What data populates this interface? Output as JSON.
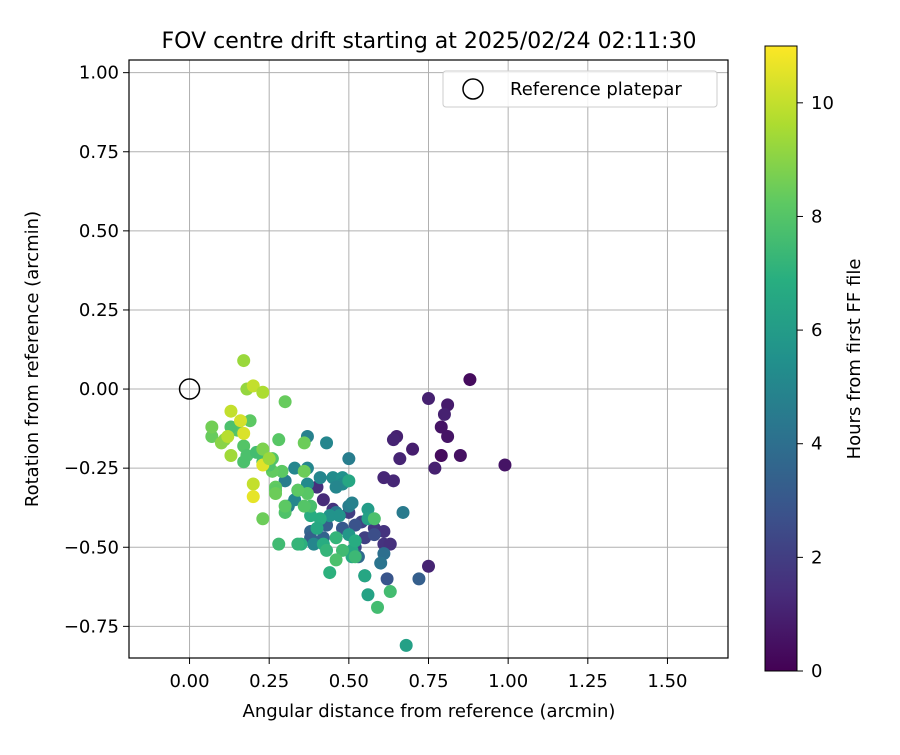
{
  "chart_data": {
    "type": "scatter",
    "title": "FOV centre drift starting at 2025/02/24 02:11:30",
    "xlabel": "Angular distance from reference (arcmin)",
    "ylabel": "Rotation from reference (arcmin)",
    "xlim": [
      -0.19,
      1.69
    ],
    "ylim": [
      -0.85,
      1.04
    ],
    "x_ticks": [
      "0.00",
      "0.25",
      "0.50",
      "0.75",
      "1.00",
      "1.25",
      "1.50"
    ],
    "x_tick_values": [
      0,
      0.25,
      0.5,
      0.75,
      1.0,
      1.25,
      1.5
    ],
    "y_ticks": [
      "1.00",
      "0.75",
      "0.50",
      "0.25",
      "0.00",
      "−0.25",
      "−0.50",
      "−0.75"
    ],
    "y_tick_values": [
      1.0,
      0.75,
      0.5,
      0.25,
      0.0,
      -0.25,
      -0.5,
      -0.75
    ],
    "grid": true,
    "legend": {
      "position": "top-right",
      "entries": [
        "Reference platepar"
      ]
    },
    "reference_point": {
      "x": 0.0,
      "y": 0.0
    },
    "colorbar": {
      "label": "Hours from first FF file",
      "colormap": "viridis",
      "range": [
        0,
        11
      ],
      "ticks": [
        "0",
        "2",
        "4",
        "6",
        "8",
        "10"
      ],
      "tick_values": [
        0,
        2,
        4,
        6,
        8,
        10
      ]
    },
    "columns": [
      "x",
      "y",
      "hours"
    ],
    "points": [
      [
        0.88,
        0.03,
        0.3
      ],
      [
        0.75,
        -0.03,
        1.0
      ],
      [
        0.81,
        -0.05,
        0.8
      ],
      [
        0.8,
        -0.08,
        1.0
      ],
      [
        0.79,
        -0.12,
        0.6
      ],
      [
        0.81,
        -0.15,
        0.6
      ],
      [
        0.65,
        -0.15,
        1.0
      ],
      [
        0.64,
        -0.16,
        1.1
      ],
      [
        0.7,
        -0.19,
        0.9
      ],
      [
        0.79,
        -0.21,
        0.3
      ],
      [
        0.85,
        -0.21,
        0.5
      ],
      [
        0.66,
        -0.22,
        1.1
      ],
      [
        0.99,
        -0.24,
        0.6
      ],
      [
        0.77,
        -0.25,
        1.0
      ],
      [
        0.61,
        -0.28,
        1.2
      ],
      [
        0.64,
        -0.29,
        1.2
      ],
      [
        0.4,
        -0.31,
        1.5
      ],
      [
        0.42,
        -0.35,
        1.3
      ],
      [
        0.45,
        -0.38,
        1.6
      ],
      [
        0.5,
        -0.39,
        2.0
      ],
      [
        0.54,
        -0.42,
        2.2
      ],
      [
        0.58,
        -0.44,
        1.8
      ],
      [
        0.61,
        -0.45,
        1.6
      ],
      [
        0.55,
        -0.47,
        2.1
      ],
      [
        0.61,
        -0.49,
        1.6
      ],
      [
        0.63,
        -0.49,
        1.5
      ],
      [
        0.52,
        -0.5,
        2.4
      ],
      [
        0.75,
        -0.56,
        1.1
      ],
      [
        0.58,
        -0.46,
        2.6
      ],
      [
        0.48,
        -0.44,
        3.0
      ],
      [
        0.52,
        -0.43,
        2.8
      ],
      [
        0.43,
        -0.43,
        3.3
      ],
      [
        0.38,
        -0.45,
        3.6
      ],
      [
        0.38,
        -0.47,
        3.3
      ],
      [
        0.42,
        -0.47,
        3.5
      ],
      [
        0.55,
        -0.59,
        3.6
      ],
      [
        0.62,
        -0.6,
        2.9
      ],
      [
        0.72,
        -0.6,
        3.3
      ],
      [
        0.53,
        -0.53,
        3.8
      ],
      [
        0.61,
        -0.52,
        4.0
      ],
      [
        0.6,
        -0.55,
        4.2
      ],
      [
        0.67,
        -0.39,
        4.5
      ],
      [
        0.5,
        -0.37,
        4.6
      ],
      [
        0.51,
        -0.36,
        4.8
      ],
      [
        0.46,
        -0.39,
        4.4
      ],
      [
        0.39,
        -0.49,
        5.0
      ],
      [
        0.5,
        -0.22,
        4.6
      ],
      [
        0.37,
        -0.15,
        4.8
      ],
      [
        0.43,
        -0.17,
        5.0
      ],
      [
        0.37,
        -0.25,
        5.0
      ],
      [
        0.33,
        -0.25,
        5.0
      ],
      [
        0.3,
        -0.29,
        4.6
      ],
      [
        0.34,
        -0.32,
        4.6
      ],
      [
        0.31,
        -0.37,
        4.8
      ],
      [
        0.33,
        -0.35,
        5.0
      ],
      [
        0.37,
        -0.3,
        5.2
      ],
      [
        0.41,
        -0.28,
        5.0
      ],
      [
        0.45,
        -0.28,
        5.3
      ],
      [
        0.48,
        -0.28,
        5.5
      ],
      [
        0.48,
        -0.3,
        5.2
      ],
      [
        0.46,
        -0.31,
        5.0
      ],
      [
        0.44,
        -0.4,
        5.6
      ],
      [
        0.47,
        -0.4,
        5.6
      ],
      [
        0.5,
        -0.46,
        5.8
      ],
      [
        0.56,
        -0.38,
        6.0
      ],
      [
        0.56,
        -0.41,
        6.2
      ],
      [
        0.5,
        -0.29,
        6.5
      ],
      [
        0.56,
        -0.65,
        6.3
      ],
      [
        0.68,
        -0.81,
        6.2
      ],
      [
        0.55,
        -0.59,
        6.5
      ],
      [
        0.51,
        -0.51,
        6.6
      ],
      [
        0.52,
        -0.48,
        6.8
      ],
      [
        0.51,
        -0.53,
        6.6
      ],
      [
        0.41,
        -0.41,
        6.8
      ],
      [
        0.38,
        -0.4,
        6.8
      ],
      [
        0.4,
        -0.44,
        6.6
      ],
      [
        0.42,
        -0.49,
        6.8
      ],
      [
        0.44,
        -0.58,
        7.0
      ],
      [
        0.43,
        -0.51,
        7.2
      ],
      [
        0.46,
        -0.47,
        7.2
      ],
      [
        0.52,
        -0.53,
        7.4
      ],
      [
        0.48,
        -0.51,
        7.5
      ],
      [
        0.46,
        -0.54,
        7.8
      ],
      [
        0.35,
        -0.49,
        7.0
      ],
      [
        0.34,
        -0.49,
        7.2
      ],
      [
        0.28,
        -0.49,
        7.5
      ],
      [
        0.59,
        -0.69,
        7.6
      ],
      [
        0.58,
        -0.41,
        7.8
      ],
      [
        0.63,
        -0.64,
        7.6
      ],
      [
        0.38,
        -0.37,
        7.7
      ],
      [
        0.36,
        -0.37,
        8.0
      ],
      [
        0.37,
        -0.33,
        8.1
      ],
      [
        0.34,
        -0.32,
        8.2
      ],
      [
        0.3,
        -0.39,
        7.9
      ],
      [
        0.3,
        -0.37,
        8.2
      ],
      [
        0.27,
        -0.31,
        8.3
      ],
      [
        0.27,
        -0.32,
        8.2
      ],
      [
        0.27,
        -0.33,
        8.5
      ],
      [
        0.29,
        -0.26,
        8.2
      ],
      [
        0.26,
        -0.26,
        8.3
      ],
      [
        0.26,
        -0.22,
        8.0
      ],
      [
        0.25,
        -0.24,
        7.9
      ],
      [
        0.23,
        -0.23,
        7.6
      ],
      [
        0.23,
        -0.19,
        8.1
      ],
      [
        0.17,
        -0.23,
        7.8
      ],
      [
        0.17,
        -0.18,
        8.0
      ],
      [
        0.18,
        -0.21,
        7.8
      ],
      [
        0.19,
        -0.1,
        8.2
      ],
      [
        0.28,
        -0.16,
        8.1
      ],
      [
        0.36,
        -0.17,
        8.5
      ],
      [
        0.36,
        -0.26,
        8.5
      ],
      [
        0.3,
        -0.04,
        8.4
      ],
      [
        0.15,
        -0.13,
        8.0
      ],
      [
        0.13,
        -0.12,
        7.8
      ],
      [
        0.21,
        -0.2,
        7.6
      ],
      [
        0.07,
        -0.15,
        8.4
      ],
      [
        0.07,
        -0.12,
        8.6
      ],
      [
        0.1,
        -0.17,
        9.0
      ],
      [
        0.11,
        -0.16,
        9.0
      ],
      [
        0.13,
        -0.21,
        9.4
      ],
      [
        0.13,
        -0.07,
        10.0
      ],
      [
        0.17,
        -0.14,
        10.4
      ],
      [
        0.16,
        -0.1,
        10.3
      ],
      [
        0.12,
        -0.15,
        9.8
      ],
      [
        0.17,
        0.09,
        9.3
      ],
      [
        0.18,
        0.0,
        9.2
      ],
      [
        0.2,
        0.01,
        10.0
      ],
      [
        0.23,
        -0.01,
        9.6
      ],
      [
        0.23,
        -0.24,
        10.5
      ],
      [
        0.2,
        -0.3,
        10.0
      ],
      [
        0.2,
        -0.34,
        10.6
      ],
      [
        0.23,
        -0.41,
        8.5
      ],
      [
        0.23,
        -0.19,
        8.8
      ],
      [
        0.25,
        -0.22,
        9.3
      ]
    ]
  }
}
